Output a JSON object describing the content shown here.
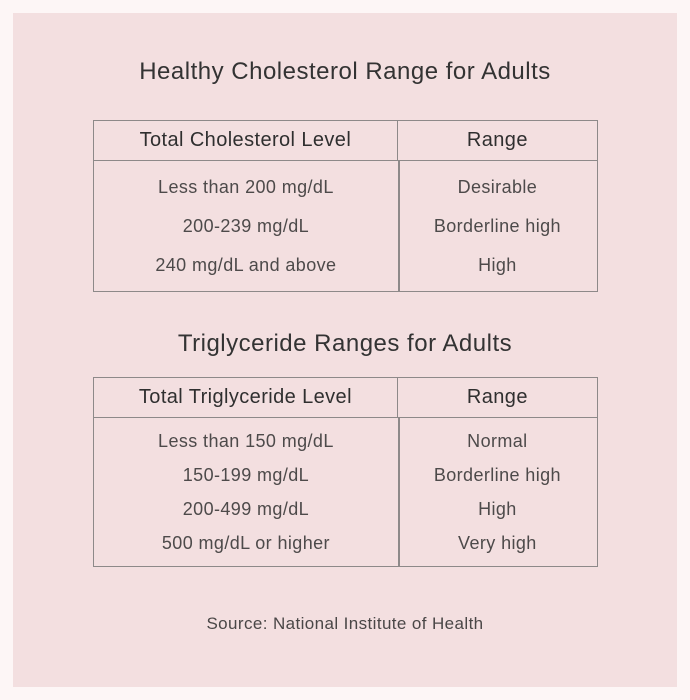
{
  "colors": {
    "outer_background": "#fdf6f6",
    "panel_background": "#f3dfe0",
    "table_border": "#8d8989",
    "title_text": "#333333",
    "header_text": "#2f2f2f",
    "cell_text": "#4d4a4a"
  },
  "cholesterol": {
    "title": "Healthy Cholesterol Range for Adults",
    "table": {
      "headers": [
        "Total Cholesterol Level",
        "Range"
      ],
      "rows": [
        [
          "Less than 200 mg/dL",
          "Desirable"
        ],
        [
          "200-239 mg/dL",
          "Borderline high"
        ],
        [
          "240 mg/dL and above",
          "High"
        ]
      ]
    }
  },
  "triglyceride": {
    "title": "Triglyceride Ranges for Adults",
    "table": {
      "headers": [
        "Total Triglyceride Level",
        "Range"
      ],
      "rows": [
        [
          "Less than 150 mg/dL",
          "Normal"
        ],
        [
          "150-199 mg/dL",
          "Borderline high"
        ],
        [
          "200-499 mg/dL",
          "High"
        ],
        [
          "500 mg/dL or higher",
          "Very high"
        ]
      ]
    }
  },
  "source": "Source: National Institute of Health",
  "chart_data": [
    {
      "type": "table",
      "title": "Healthy Cholesterol Range for Adults",
      "columns": [
        "Total Cholesterol Level",
        "Range"
      ],
      "rows": [
        [
          "Less than 200 mg/dL",
          "Desirable"
        ],
        [
          "200-239 mg/dL",
          "Borderline high"
        ],
        [
          "240 mg/dL and above",
          "High"
        ]
      ]
    },
    {
      "type": "table",
      "title": "Triglyceride Ranges for Adults",
      "columns": [
        "Total Triglyceride Level",
        "Range"
      ],
      "rows": [
        [
          "Less than 150 mg/dL",
          "Normal"
        ],
        [
          "150-199 mg/dL",
          "Borderline high"
        ],
        [
          "200-499 mg/dL",
          "High"
        ],
        [
          "500 mg/dL or higher",
          "Very high"
        ]
      ]
    }
  ]
}
